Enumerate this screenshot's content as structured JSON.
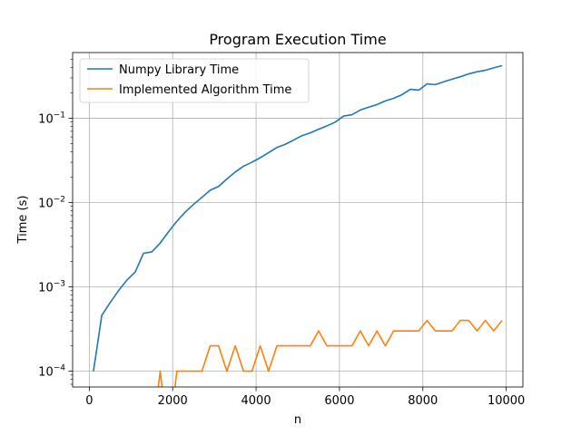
{
  "chart_data": {
    "type": "line",
    "title": "Program Execution Time",
    "xlabel": "n",
    "ylabel": "Time (s)",
    "xscale": "linear",
    "yscale": "log",
    "xlim": [
      -400,
      10400
    ],
    "ylim": [
      6.5e-05,
      0.6
    ],
    "grid": true,
    "legend_position": "top-left",
    "x_ticks": [
      0,
      2000,
      4000,
      6000,
      8000,
      10000
    ],
    "x_tick_labels": [
      "0",
      "2000",
      "4000",
      "6000",
      "8000",
      "10000"
    ],
    "y_ticks": [
      0.0001,
      0.001,
      0.01,
      0.1
    ],
    "y_tick_labels": [
      {
        "base": "10",
        "exp": "−4"
      },
      {
        "base": "10",
        "exp": "−3"
      },
      {
        "base": "10",
        "exp": "−2"
      },
      {
        "base": "10",
        "exp": "−1"
      }
    ],
    "x": [
      100,
      300,
      500,
      700,
      900,
      1100,
      1300,
      1500,
      1700,
      1900,
      2100,
      2300,
      2500,
      2700,
      2900,
      3100,
      3300,
      3500,
      3700,
      3900,
      4100,
      4300,
      4500,
      4700,
      4900,
      5100,
      5300,
      5500,
      5700,
      5900,
      6100,
      6300,
      6500,
      6700,
      6900,
      7100,
      7300,
      7500,
      7700,
      7900,
      8100,
      8300,
      8500,
      8700,
      8900,
      9100,
      9300,
      9500,
      9700,
      9900
    ],
    "series": [
      {
        "name": "Numpy Library Time",
        "color": "#1f77b4",
        "values": [
          0.0001,
          0.00046,
          0.00065,
          0.0009,
          0.0012,
          0.0015,
          0.0025,
          0.0026,
          0.0033,
          0.0045,
          0.006,
          0.0077,
          0.0095,
          0.0115,
          0.014,
          0.0155,
          0.019,
          0.023,
          0.027,
          0.03,
          0.034,
          0.039,
          0.045,
          0.049,
          0.055,
          0.062,
          0.067,
          0.074,
          0.081,
          0.09,
          0.106,
          0.11,
          0.125,
          0.135,
          0.145,
          0.16,
          0.172,
          0.19,
          0.22,
          0.215,
          0.255,
          0.25,
          0.27,
          0.29,
          0.31,
          0.335,
          0.355,
          0.37,
          0.395,
          0.42
        ]
      },
      {
        "name": "Implemented Algorithm Time",
        "color": "#ff7f0e",
        "values": [
          null,
          null,
          null,
          null,
          null,
          0.0,
          null,
          0.0,
          0.0001,
          0.0,
          0.0001,
          0.0001,
          0.0001,
          0.0001,
          0.0002,
          0.0002,
          0.0001,
          0.0002,
          0.0001,
          0.0001,
          0.0002,
          0.0001,
          0.0002,
          0.0002,
          0.0002,
          0.0002,
          0.0002,
          0.0003,
          0.0002,
          0.0002,
          0.0002,
          0.0002,
          0.0003,
          0.0002,
          0.0003,
          0.0002,
          0.0003,
          0.0003,
          0.0003,
          0.0003,
          0.0004,
          0.0003,
          0.0003,
          0.0003,
          0.0004,
          0.0004,
          0.0003,
          0.0004,
          0.0003,
          0.0004
        ]
      }
    ]
  }
}
